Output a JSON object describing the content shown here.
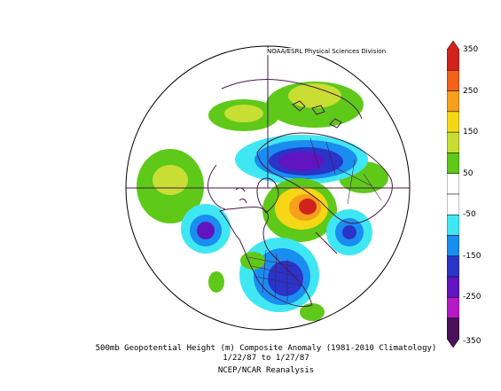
{
  "credit": "NOAA/ESRL Physical Sciences Division",
  "caption": {
    "title": "500mb Geopotential Height (m) Composite Anomaly (1981-2010 Climatology)",
    "dates": "1/22/87  to 1/27/87",
    "source": "NCEP/NCAR Reanalysis"
  },
  "colorbar": {
    "labels": [
      "350",
      "250",
      "150",
      "50",
      "-50",
      "-150",
      "-250",
      "-350"
    ],
    "bins": [
      {
        "min": 300,
        "max": 350,
        "color": "#d1231b"
      },
      {
        "min": 250,
        "max": 300,
        "color": "#f2621b"
      },
      {
        "min": 200,
        "max": 250,
        "color": "#f6a01c"
      },
      {
        "min": 150,
        "max": 200,
        "color": "#f5d716"
      },
      {
        "min": 100,
        "max": 150,
        "color": "#c8de33"
      },
      {
        "min": 50,
        "max": 100,
        "color": "#5ec919"
      },
      {
        "min": 0,
        "max": 50,
        "color": "#ffffff"
      },
      {
        "min": -50,
        "max": 0,
        "color": "#ffffff"
      },
      {
        "min": -100,
        "max": -50,
        "color": "#3fe7f2"
      },
      {
        "min": -150,
        "max": -100,
        "color": "#1a8df0"
      },
      {
        "min": -200,
        "max": -150,
        "color": "#2a34c8"
      },
      {
        "min": -250,
        "max": -200,
        "color": "#6015c0"
      },
      {
        "min": -300,
        "max": -250,
        "color": "#b51ac6"
      },
      {
        "min": -350,
        "max": -300,
        "color": "#4a1158"
      }
    ]
  },
  "colors": {
    "coastline": "#4a1a4a",
    "outline": "#000000"
  }
}
